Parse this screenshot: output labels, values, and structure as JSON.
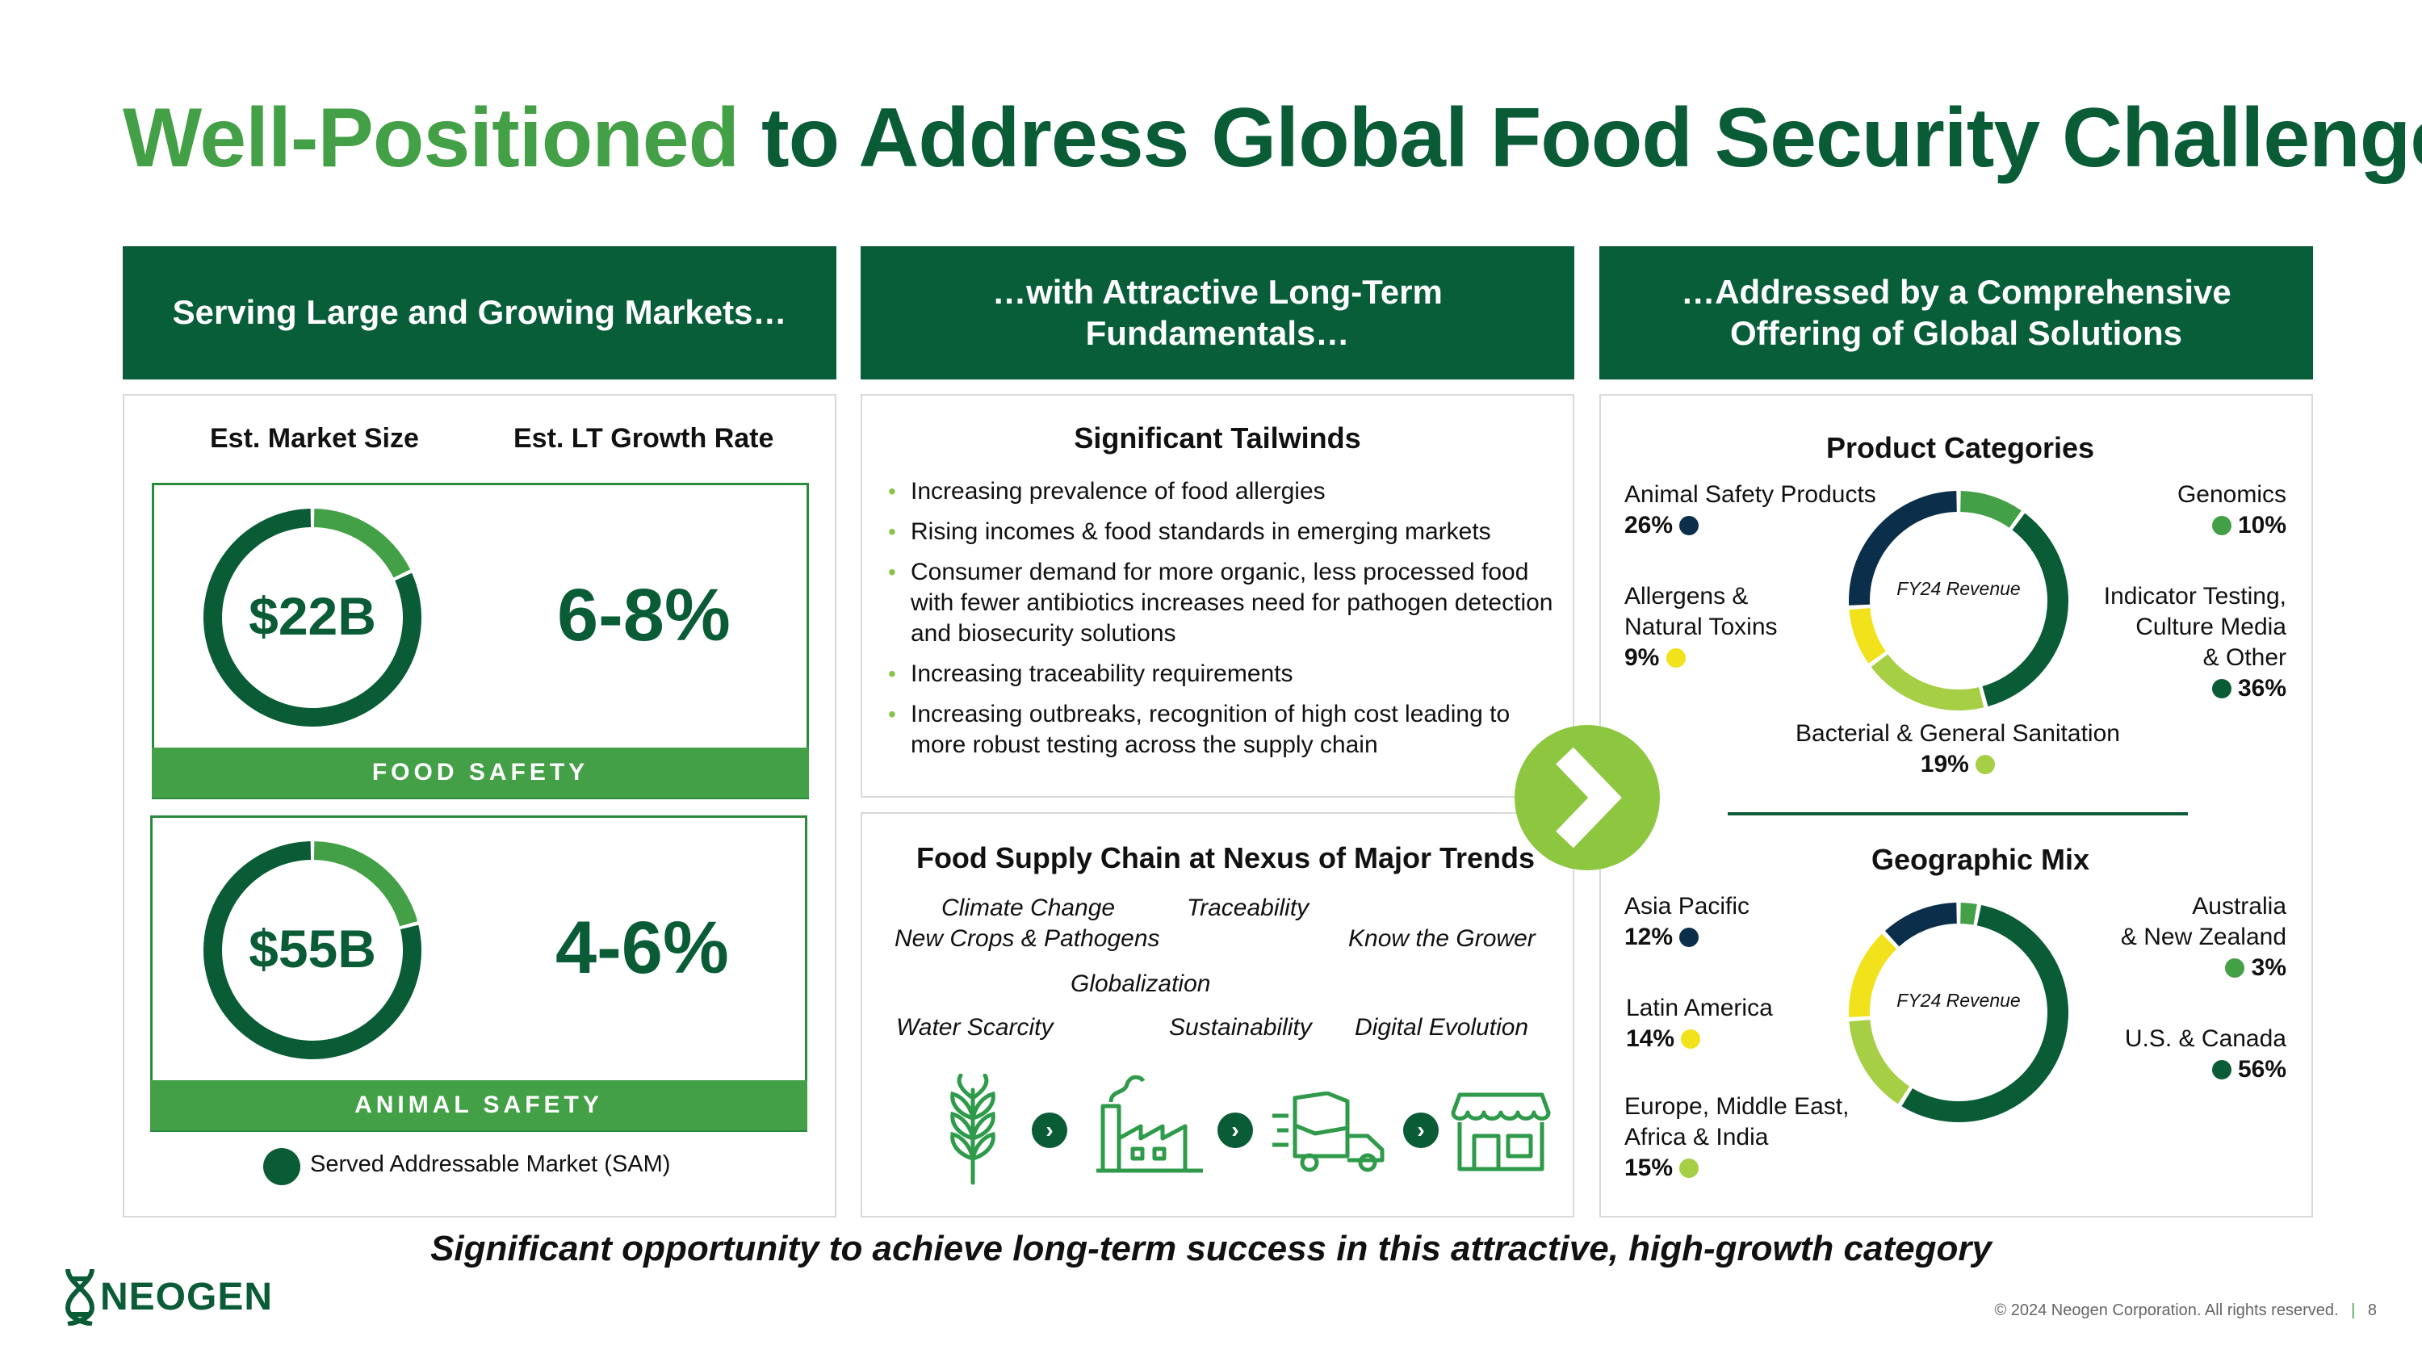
{
  "title": {
    "lead": "Well-Positioned",
    "rest": "to Address Global Food Security Challenges"
  },
  "columns": {
    "markets": {
      "header": "Serving Large and Growing Markets…"
    },
    "fundamentals": {
      "header": "…with Attractive Long-Term Fundamentals…"
    },
    "solutions": {
      "header": "…Addressed by a Comprehensive Offering of Global Solutions"
    }
  },
  "markets": {
    "col_size": "Est. Market Size",
    "col_growth": "Est. LT Growth Rate",
    "food": {
      "amount": "$22B",
      "growth": "6-8%",
      "label": "FOOD SAFETY",
      "sam_fraction": 0.82
    },
    "animal": {
      "amount": "$55B",
      "growth": "4-6%",
      "label": "ANIMAL SAFETY",
      "sam_fraction": 0.79
    },
    "legend": "Served Addressable Market (SAM)",
    "colors": {
      "sam": "#0a5c37",
      "rest": "#44a047"
    }
  },
  "tailwinds": {
    "title": "Significant Tailwinds",
    "items": [
      "Increasing prevalence of food allergies",
      "Rising incomes & food standards in emerging markets",
      "Consumer demand for more organic, less processed food with fewer antibiotics increases need for pathogen detection and biosecurity solutions",
      "Increasing traceability requirements",
      "Increasing outbreaks, recognition of high cost leading to more robust testing across the supply chain"
    ]
  },
  "supply_chain": {
    "title": "Food Supply Chain at Nexus of Major Trends",
    "trends": {
      "climate": "Climate Change",
      "traceability": "Traceability",
      "crops": "New Crops & Pathogens",
      "grower": "Know the Grower",
      "globalization": "Globalization",
      "water": "Water Scarcity",
      "sustainability": "Sustainability",
      "digital": "Digital Evolution"
    },
    "icons": [
      "wheat-icon",
      "factory-icon",
      "delivery-truck-icon",
      "storefront-icon"
    ]
  },
  "product_categories": {
    "title": "Product Categories",
    "center": "FY24 Revenue",
    "segments": [
      {
        "label": "Genomics",
        "pct": "10%",
        "value": 10,
        "color": "#44a047"
      },
      {
        "label": "Indicator Testing, Culture Media & Other",
        "pct": "36%",
        "value": 36,
        "color": "#0a5c37"
      },
      {
        "label": "Bacterial & General Sanitation",
        "pct": "19%",
        "value": 19,
        "color": "#a7cf45"
      },
      {
        "label": "Allergens & Natural Toxins",
        "pct": "9%",
        "value": 9,
        "color": "#f1e21b"
      },
      {
        "label": "Animal Safety Products",
        "pct": "26%",
        "value": 26,
        "color": "#0b2f4a"
      }
    ],
    "labels": {
      "animal": "Animal Safety Products",
      "animal_pct": "26%",
      "genomics": "Genomics",
      "genomics_pct": "10%",
      "allergens_1": "Allergens &",
      "allergens_2": "Natural Toxins",
      "allergens_pct": "9%",
      "indicator_1": "Indicator Testing,",
      "indicator_2": "Culture Media",
      "indicator_3": "& Other",
      "indicator_pct": "36%",
      "bacterial": "Bacterial & General Sanitation",
      "bacterial_pct": "19%"
    }
  },
  "geographic_mix": {
    "title": "Geographic Mix",
    "center": "FY24 Revenue",
    "segments": [
      {
        "label": "Australia & New Zealand",
        "pct": "3%",
        "value": 3,
        "color": "#44a047"
      },
      {
        "label": "U.S. & Canada",
        "pct": "56%",
        "value": 56,
        "color": "#0a5c37"
      },
      {
        "label": "Europe, Middle East, Africa & India",
        "pct": "15%",
        "value": 15,
        "color": "#a7cf45"
      },
      {
        "label": "Latin America",
        "pct": "14%",
        "value": 14,
        "color": "#f1e21b"
      },
      {
        "label": "Asia Pacific",
        "pct": "12%",
        "value": 12,
        "color": "#0b2f4a"
      }
    ],
    "labels": {
      "apac": "Asia Pacific",
      "apac_pct": "12%",
      "anz_1": "Australia",
      "anz_2": "& New Zealand",
      "anz_pct": "3%",
      "latam": "Latin America",
      "latam_pct": "14%",
      "us": "U.S. & Canada",
      "us_pct": "56%",
      "emea_1": "Europe, Middle East,",
      "emea_2": "Africa & India",
      "emea_pct": "15%"
    }
  },
  "tagline": "Significant opportunity to achieve long-term success in this attractive, high-growth category",
  "logo": "NEOGEN",
  "copyright": "© 2024 Neogen Corporation. All rights reserved.",
  "page_number": "8"
}
